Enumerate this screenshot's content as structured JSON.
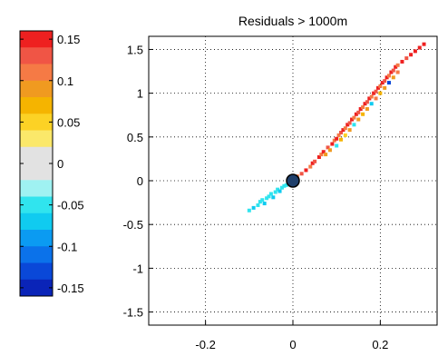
{
  "chart_data": [
    {
      "type": "scatter",
      "title": "Residuals > 1000m",
      "xlabel": "",
      "ylabel": "",
      "xlim": [
        -0.33,
        0.33
      ],
      "ylim": [
        -1.65,
        1.65
      ],
      "xticks": [
        -0.2,
        0,
        0.2
      ],
      "xtick_labels": [
        "-0.2",
        "0",
        "0.2"
      ],
      "yticks": [
        1.5,
        1,
        0.5,
        0,
        -0.5,
        -1,
        -1.5
      ],
      "ytick_labels": [
        "1.5",
        "1",
        "0.5",
        "0",
        "-0.5",
        "-1",
        "-1.5"
      ],
      "grid": true,
      "grid_style": "dotted",
      "color_scale": {
        "min": -0.16,
        "max": 0.16
      },
      "marker": {
        "x": 0,
        "y": 0,
        "color": "#1f3f6b"
      },
      "points": [
        {
          "x": -0.1,
          "y": -0.34,
          "c": -0.05
        },
        {
          "x": -0.09,
          "y": -0.31,
          "c": -0.06
        },
        {
          "x": -0.08,
          "y": -0.28,
          "c": -0.05
        },
        {
          "x": -0.075,
          "y": -0.24,
          "c": -0.04
        },
        {
          "x": -0.07,
          "y": -0.22,
          "c": -0.05
        },
        {
          "x": -0.065,
          "y": -0.26,
          "c": -0.06
        },
        {
          "x": -0.06,
          "y": -0.2,
          "c": -0.04
        },
        {
          "x": -0.055,
          "y": -0.18,
          "c": -0.05
        },
        {
          "x": -0.05,
          "y": -0.15,
          "c": -0.04
        },
        {
          "x": -0.045,
          "y": -0.19,
          "c": -0.06
        },
        {
          "x": -0.04,
          "y": -0.13,
          "c": -0.05
        },
        {
          "x": -0.035,
          "y": -0.1,
          "c": -0.04
        },
        {
          "x": -0.03,
          "y": -0.12,
          "c": -0.06
        },
        {
          "x": -0.025,
          "y": -0.08,
          "c": -0.04
        },
        {
          "x": -0.02,
          "y": -0.06,
          "c": -0.05
        },
        {
          "x": -0.015,
          "y": -0.05,
          "c": -0.04
        },
        {
          "x": -0.01,
          "y": -0.03,
          "c": -0.05
        },
        {
          "x": 0.01,
          "y": 0.05,
          "c": 0.12
        },
        {
          "x": 0.02,
          "y": 0.08,
          "c": 0.13
        },
        {
          "x": 0.03,
          "y": 0.12,
          "c": 0.14
        },
        {
          "x": 0.04,
          "y": 0.16,
          "c": 0.12
        },
        {
          "x": 0.045,
          "y": 0.2,
          "c": 0.15
        },
        {
          "x": 0.05,
          "y": 0.22,
          "c": 0.13
        },
        {
          "x": 0.06,
          "y": 0.27,
          "c": 0.14
        },
        {
          "x": 0.065,
          "y": 0.3,
          "c": 0.12
        },
        {
          "x": 0.07,
          "y": 0.33,
          "c": 0.15
        },
        {
          "x": 0.075,
          "y": 0.3,
          "c": 0.1
        },
        {
          "x": 0.08,
          "y": 0.38,
          "c": 0.13
        },
        {
          "x": 0.085,
          "y": 0.35,
          "c": 0.09
        },
        {
          "x": 0.09,
          "y": 0.42,
          "c": 0.14
        },
        {
          "x": 0.095,
          "y": 0.46,
          "c": 0.12
        },
        {
          "x": 0.1,
          "y": 0.48,
          "c": 0.15
        },
        {
          "x": 0.1,
          "y": 0.4,
          "c": -0.05
        },
        {
          "x": 0.105,
          "y": 0.52,
          "c": 0.11
        },
        {
          "x": 0.11,
          "y": 0.55,
          "c": 0.13
        },
        {
          "x": 0.11,
          "y": 0.47,
          "c": 0.08
        },
        {
          "x": 0.115,
          "y": 0.58,
          "c": 0.14
        },
        {
          "x": 0.12,
          "y": 0.6,
          "c": 0.12
        },
        {
          "x": 0.12,
          "y": 0.52,
          "c": 0.06
        },
        {
          "x": 0.125,
          "y": 0.64,
          "c": 0.15
        },
        {
          "x": 0.13,
          "y": 0.66,
          "c": 0.13
        },
        {
          "x": 0.13,
          "y": 0.58,
          "c": 0.1
        },
        {
          "x": 0.135,
          "y": 0.7,
          "c": 0.14
        },
        {
          "x": 0.14,
          "y": 0.72,
          "c": 0.12
        },
        {
          "x": 0.14,
          "y": 0.64,
          "c": -0.04
        },
        {
          "x": 0.145,
          "y": 0.76,
          "c": 0.15
        },
        {
          "x": 0.15,
          "y": 0.78,
          "c": 0.13
        },
        {
          "x": 0.15,
          "y": 0.7,
          "c": 0.09
        },
        {
          "x": 0.155,
          "y": 0.82,
          "c": 0.14
        },
        {
          "x": 0.16,
          "y": 0.84,
          "c": 0.12
        },
        {
          "x": 0.16,
          "y": 0.76,
          "c": 0.07
        },
        {
          "x": 0.165,
          "y": 0.88,
          "c": 0.15
        },
        {
          "x": 0.17,
          "y": 0.9,
          "c": 0.13
        },
        {
          "x": 0.17,
          "y": 0.82,
          "c": 0.1
        },
        {
          "x": 0.175,
          "y": 0.94,
          "c": 0.14
        },
        {
          "x": 0.18,
          "y": 0.96,
          "c": 0.12
        },
        {
          "x": 0.18,
          "y": 0.88,
          "c": -0.06
        },
        {
          "x": 0.185,
          "y": 1.0,
          "c": 0.15
        },
        {
          "x": 0.19,
          "y": 1.02,
          "c": 0.13
        },
        {
          "x": 0.19,
          "y": 0.94,
          "c": 0.11
        },
        {
          "x": 0.195,
          "y": 1.06,
          "c": 0.14
        },
        {
          "x": 0.2,
          "y": 1.08,
          "c": 0.12
        },
        {
          "x": 0.2,
          "y": 1.0,
          "c": 0.08
        },
        {
          "x": 0.205,
          "y": 1.12,
          "c": 0.15
        },
        {
          "x": 0.21,
          "y": 1.14,
          "c": 0.13
        },
        {
          "x": 0.21,
          "y": 1.06,
          "c": 0.1
        },
        {
          "x": 0.215,
          "y": 1.18,
          "c": 0.14
        },
        {
          "x": 0.22,
          "y": 1.2,
          "c": 0.12
        },
        {
          "x": 0.22,
          "y": 1.12,
          "c": -0.13
        },
        {
          "x": 0.225,
          "y": 1.24,
          "c": 0.15
        },
        {
          "x": 0.23,
          "y": 1.26,
          "c": 0.13
        },
        {
          "x": 0.23,
          "y": 1.18,
          "c": 0.09
        },
        {
          "x": 0.235,
          "y": 1.3,
          "c": 0.14
        },
        {
          "x": 0.24,
          "y": 1.32,
          "c": 0.12
        },
        {
          "x": 0.24,
          "y": 1.24,
          "c": 0.11
        },
        {
          "x": 0.25,
          "y": 1.36,
          "c": 0.15
        },
        {
          "x": 0.26,
          "y": 1.4,
          "c": 0.13
        },
        {
          "x": 0.27,
          "y": 1.44,
          "c": 0.14
        },
        {
          "x": 0.28,
          "y": 1.48,
          "c": 0.15
        },
        {
          "x": 0.29,
          "y": 1.52,
          "c": 0.14
        },
        {
          "x": 0.3,
          "y": 1.56,
          "c": 0.15
        }
      ]
    }
  ],
  "colorbar": {
    "tick_labels": [
      "0.15",
      "0.1",
      "0.05",
      "0",
      "-0.05",
      "-0.1",
      "-0.15"
    ],
    "colors": [
      "#ee2020",
      "#f05545",
      "#f57a45",
      "#f09a20",
      "#f5b400",
      "#fcd225",
      "#fbe86a",
      "#e2e2e2",
      "#e2e2e2",
      "#9ff2f2",
      "#30e4ee",
      "#10cbf0",
      "#0b9bf2",
      "#0b72ea",
      "#0a48d8",
      "#0a24b8"
    ]
  }
}
